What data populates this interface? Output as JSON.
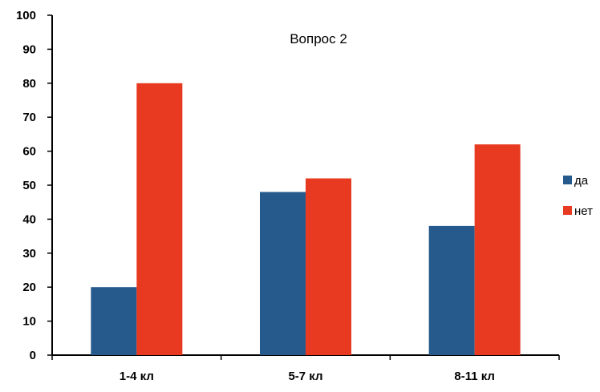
{
  "chart_data": {
    "type": "bar",
    "title": "Вопрос 2",
    "xlabel": "",
    "ylabel": "",
    "categories": [
      "1-4 кл",
      "5-7 кл",
      "8-11 кл"
    ],
    "series": [
      {
        "name": "да",
        "values": [
          20,
          48,
          38
        ],
        "color": "#265a8c"
      },
      {
        "name": "нет",
        "values": [
          80,
          52,
          62
        ],
        "color": "#e83a20"
      }
    ],
    "ylim": [
      0,
      100
    ],
    "yticks": [
      "0",
      "10",
      "20",
      "30",
      "40",
      "50",
      "60",
      "70",
      "80",
      "90",
      "100"
    ],
    "grid": false,
    "legend": "right"
  }
}
